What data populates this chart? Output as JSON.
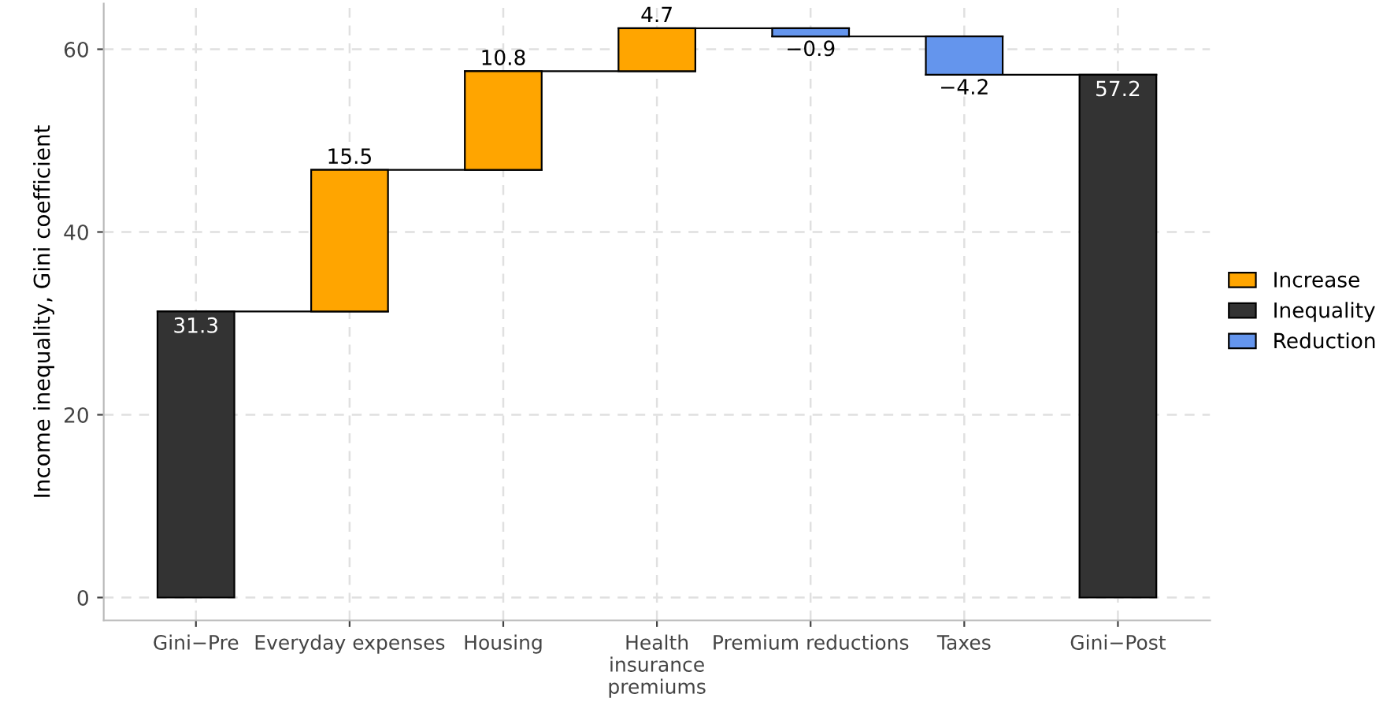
{
  "chart_data": {
    "type": "bar",
    "ylabel": "Income inequality, Gini coefficient",
    "categories": [
      "Gini−Pre",
      "Everyday expenses",
      "Housing",
      "Health\ninsurance\npremiums",
      "Premium reductions",
      "Taxes",
      "Gini−Post"
    ],
    "series": [
      {
        "name": "Increase",
        "color": "#ffa500",
        "values": [
          null,
          15.5,
          10.8,
          4.7,
          null,
          null,
          null
        ],
        "base": [
          null,
          31.3,
          46.8,
          57.6,
          null,
          null,
          null
        ],
        "value_labels": [
          null,
          "15.5",
          "10.8",
          "4.7",
          null,
          null,
          null
        ]
      },
      {
        "name": "Inequality",
        "color": "#333333",
        "values": [
          31.3,
          null,
          null,
          null,
          null,
          null,
          57.2
        ],
        "base": [
          0,
          null,
          null,
          null,
          null,
          null,
          0
        ],
        "value_labels": [
          "31.3",
          null,
          null,
          null,
          null,
          null,
          "57.2"
        ]
      },
      {
        "name": "Reduction",
        "color": "#6495ed",
        "values": [
          null,
          null,
          null,
          null,
          -0.9,
          -4.2,
          null
        ],
        "base": [
          null,
          null,
          null,
          null,
          62.3,
          61.4,
          null
        ],
        "value_labels": [
          null,
          null,
          null,
          null,
          "−0.9",
          "−4.2",
          null
        ]
      }
    ],
    "ylim": [
      -2.5,
      65
    ],
    "yticks": [
      0,
      20,
      40,
      60
    ],
    "grid": true,
    "legend": "right"
  }
}
